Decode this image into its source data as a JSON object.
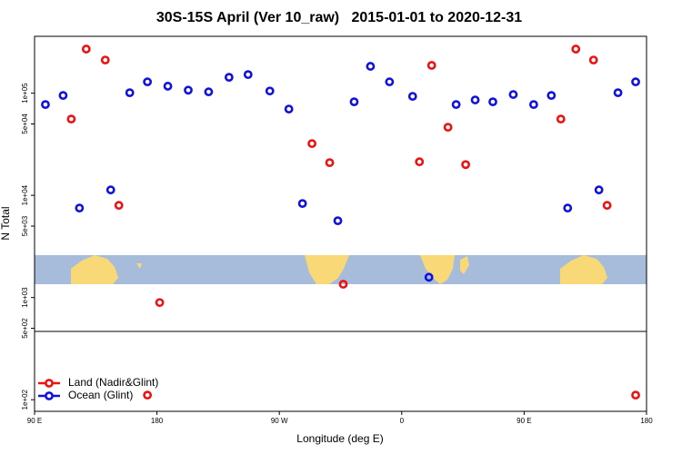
{
  "chart_data": {
    "type": "scatter",
    "title": "30S-15S April (Ver 10_raw)   2015-01-01 to 2020-12-31",
    "x_label": "Longitude (deg E)",
    "y_label": "N Total",
    "log_y": true,
    "xlim": [
      90,
      540
    ],
    "ylim": [
      77,
      360000
    ],
    "xticks": [
      {
        "value": 90,
        "label": "90 E"
      },
      180,
      {
        "value": 270,
        "label": "90 W"
      },
      {
        "value": 360,
        "label": "0"
      },
      {
        "value": 450,
        "label": "90 E"
      },
      {
        "value": 540,
        "label": "180"
      }
    ],
    "yticks": [
      {
        "value": 100,
        "label": "1e+02"
      },
      {
        "value": 500,
        "label": "5e+02"
      },
      {
        "value": 1000,
        "label": "1e+03"
      },
      {
        "value": 5000,
        "label": "5e+03"
      },
      {
        "value": 10000,
        "label": "1e+04"
      },
      {
        "value": 50000,
        "label": "5e+04"
      },
      {
        "value": 100000,
        "label": "1e+05"
      }
    ],
    "legend_position": "lower left",
    "series": [
      {
        "name": "Land (Nadir&Glint)",
        "color": "#ee1111",
        "x": [
          117,
          128,
          142,
          152,
          182,
          173,
          294,
          307,
          317,
          373,
          382,
          394,
          407,
          477,
          488,
          501,
          511,
          532
        ],
        "values": [
          55800,
          270000,
          211000,
          7980,
          893,
          111,
          32100,
          20900,
          1350,
          21300,
          187000,
          46400,
          20000,
          55800,
          270000,
          211000,
          7980,
          111
        ]
      },
      {
        "name": "Ocean (Glint)",
        "color": "#1111dd",
        "x": [
          98,
          111,
          123,
          146,
          160,
          173,
          188,
          203,
          218,
          233,
          247,
          263,
          277,
          287,
          313,
          325,
          337,
          351,
          368,
          380,
          400,
          414,
          427,
          442,
          457,
          470,
          482,
          505,
          519,
          532
        ],
        "values": [
          77400,
          95000,
          7510,
          11300,
          101000,
          129000,
          117000,
          107000,
          103000,
          143000,
          152000,
          105000,
          69900,
          8320,
          5640,
          82300,
          183000,
          129000,
          93100,
          1580,
          77400,
          85800,
          82300,
          97000,
          77400,
          95000,
          7510,
          11300,
          101000,
          129000
        ]
      }
    ]
  }
}
